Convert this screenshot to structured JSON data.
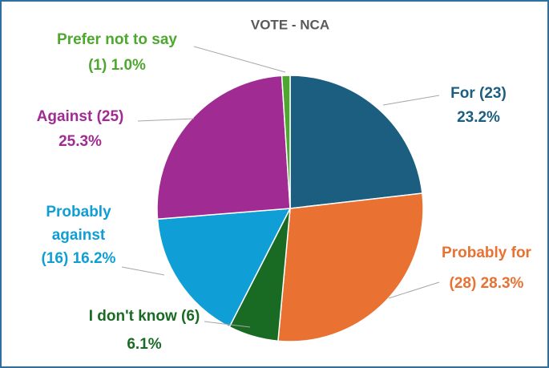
{
  "chart_data": {
    "type": "pie",
    "title": "VOTE - NCA",
    "categories": [
      "For",
      "Probably for",
      "I don't know",
      "Probably against",
      "Against",
      "Prefer not to say"
    ],
    "values": [
      23.2,
      28.3,
      6.1,
      16.2,
      25.3,
      1.0
    ],
    "labels": [
      [
        "For (23)",
        "23.2%"
      ],
      [
        "Probably for",
        "(28) 28.3%"
      ],
      [
        "I don't know (6)",
        "6.1%"
      ],
      [
        "Probably",
        "against",
        "(16) 16.2%"
      ],
      [
        "Against (25)",
        "25.3%"
      ],
      [
        "Prefer not to say",
        "(1) 1.0%"
      ]
    ],
    "colors": [
      "#1b5e7f",
      "#e97132",
      "#196b24",
      "#0f9ed5",
      "#a02b93",
      "#4ea72e"
    ]
  }
}
